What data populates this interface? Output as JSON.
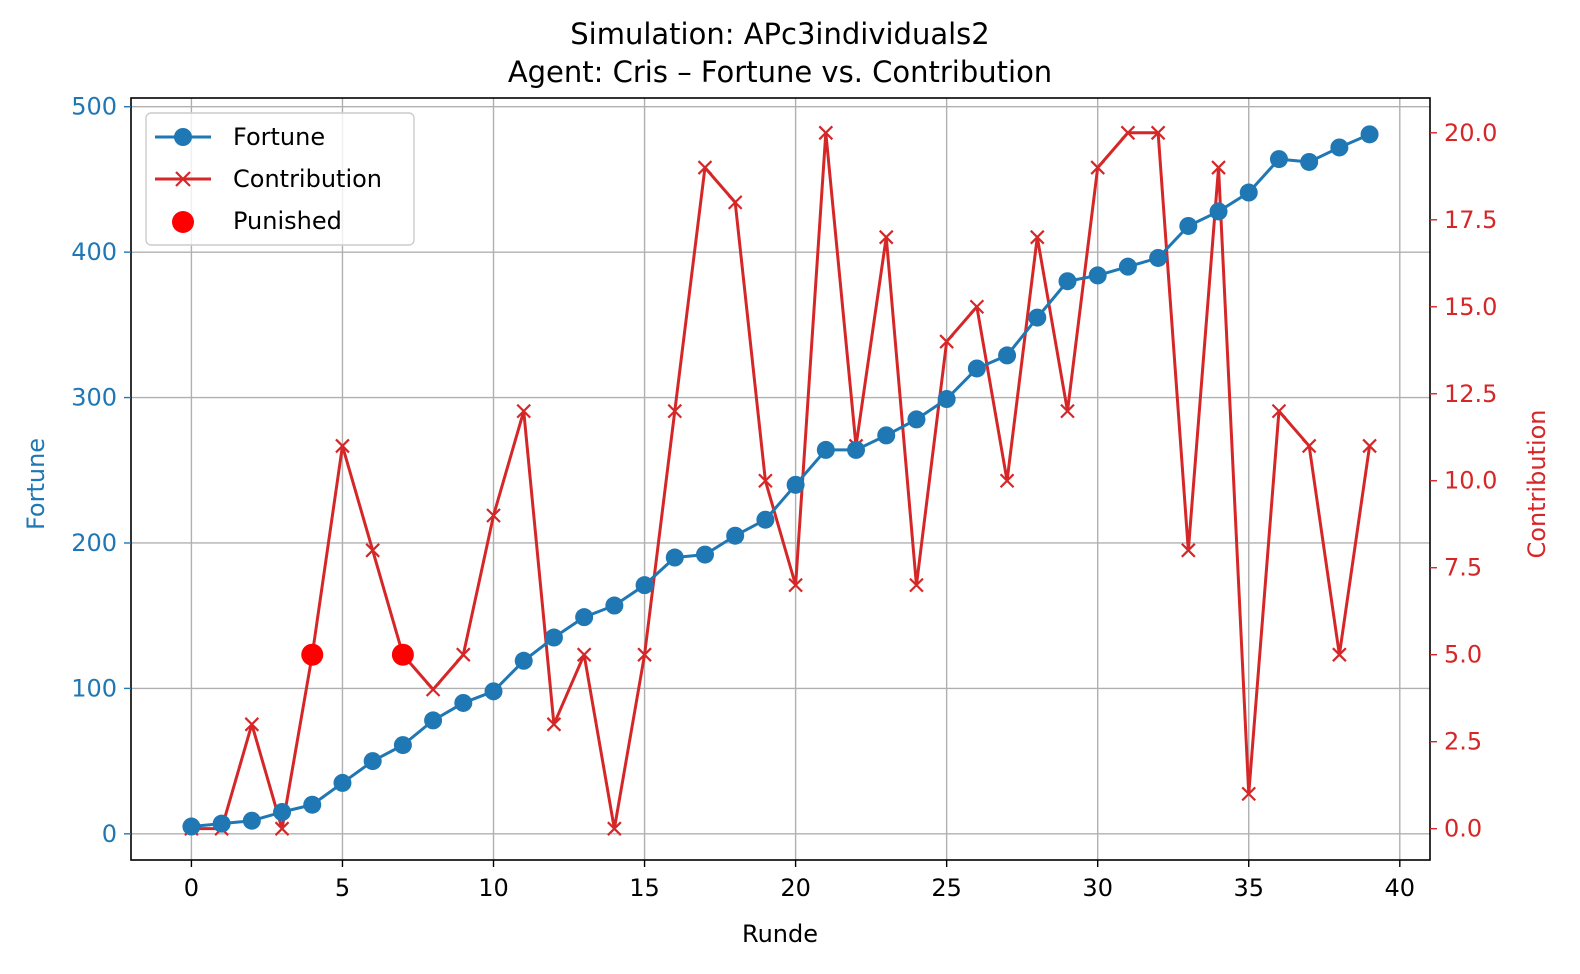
{
  "chart_data": {
    "type": "line",
    "title_line1": "Simulation: APc3individuals2",
    "title_line2": "Agent: Cris – Fortune vs. Contribution",
    "xlabel": "Runde",
    "ylabel_left": "Fortune",
    "ylabel_right": "Contribution",
    "xlim": [
      -2,
      41
    ],
    "ylim_left": [
      -18,
      506
    ],
    "ylim_right": [
      -0.9,
      21.0
    ],
    "xticks": [
      0,
      5,
      10,
      15,
      20,
      25,
      30,
      35,
      40
    ],
    "yticks_left": [
      0,
      100,
      200,
      300,
      400,
      500
    ],
    "yticks_right": [
      "0.0",
      "2.5",
      "5.0",
      "7.5",
      "10.0",
      "12.5",
      "15.0",
      "17.5",
      "20.0"
    ],
    "grid": true,
    "legend_position": "upper-left",
    "colors": {
      "fortune": "#1f77b4",
      "contribution": "#d62728",
      "punished": "#ff0000"
    },
    "x": [
      0,
      1,
      2,
      3,
      4,
      5,
      6,
      7,
      8,
      9,
      10,
      11,
      12,
      13,
      14,
      15,
      16,
      17,
      18,
      19,
      20,
      21,
      22,
      23,
      24,
      25,
      26,
      27,
      28,
      29,
      30,
      31,
      32,
      33,
      34,
      35,
      36,
      37,
      38,
      39
    ],
    "series": [
      {
        "name": "Fortune",
        "axis": "left",
        "marker": "circle",
        "values": [
          5,
          7,
          9,
          15,
          20,
          35,
          50,
          61,
          78,
          90,
          98,
          119,
          135,
          149,
          157,
          171,
          190,
          192,
          205,
          216,
          240,
          264,
          264,
          274,
          285,
          299,
          320,
          329,
          355,
          380,
          384,
          390,
          396,
          418,
          428,
          441,
          464,
          462,
          472,
          481
        ]
      },
      {
        "name": "Contribution",
        "axis": "right",
        "marker": "x",
        "values": [
          0,
          0,
          3,
          0,
          5,
          11,
          8,
          5,
          4,
          5,
          9,
          12,
          3,
          5,
          0,
          5,
          12,
          19,
          18,
          10,
          7,
          20,
          11,
          17,
          7,
          14,
          15,
          10,
          17,
          12,
          19,
          20,
          20,
          8,
          19,
          1,
          12,
          11,
          5,
          11
        ]
      },
      {
        "name": "Punished",
        "axis": "right",
        "marker": "dot",
        "points": [
          [
            4,
            5
          ],
          [
            7,
            5
          ]
        ]
      }
    ]
  }
}
